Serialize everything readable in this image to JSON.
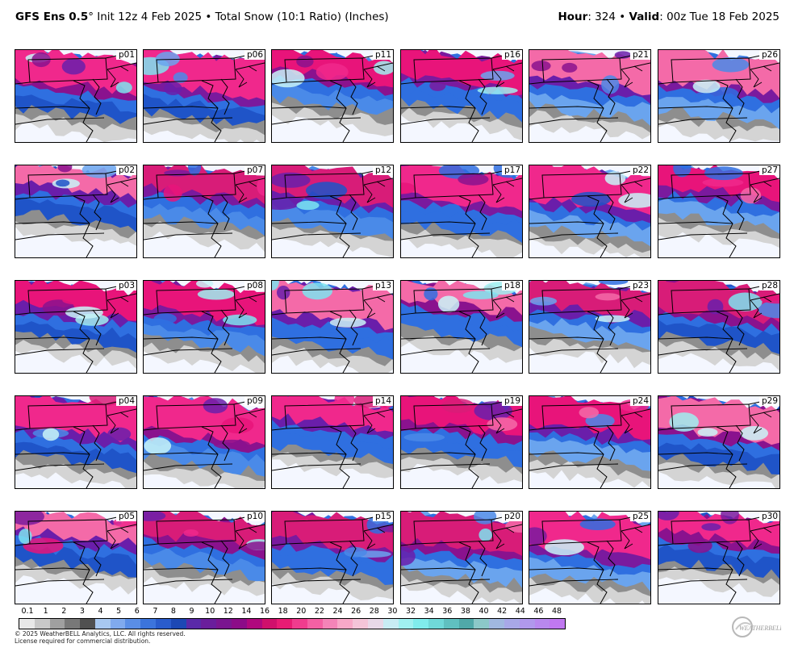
{
  "header": {
    "model": "GFS Ens 0.5",
    "degree": "°",
    "init": " Init 12z 4 Feb 2025",
    "bullet1": " • ",
    "product": "Total Snow (10:1 Ratio) (Inches)",
    "hour_label": "Hour",
    "hour_value": ": 324",
    "bullet2": " • ",
    "valid_label": "Valid",
    "valid_value": ": 00z Tue 18 Feb 2025"
  },
  "members": [
    [
      "p01",
      "p06",
      "p11",
      "p16",
      "p21",
      "p26"
    ],
    [
      "p02",
      "p07",
      "p12",
      "p17",
      "p22",
      "p27"
    ],
    [
      "p03",
      "p08",
      "p13",
      "p18",
      "p23",
      "p28"
    ],
    [
      "p04",
      "p09",
      "p14",
      "p19",
      "p24",
      "p29"
    ],
    [
      "p05",
      "p10",
      "p15",
      "p20",
      "p25",
      "p30"
    ]
  ],
  "colorbar": {
    "tick_labels": [
      "0.1",
      "1",
      "2",
      "3",
      "4",
      "5",
      "6",
      "7",
      "8",
      "9",
      "10",
      "12",
      "14",
      "16",
      "18",
      "20",
      "22",
      "24",
      "26",
      "28",
      "30",
      "32",
      "34",
      "36",
      "38",
      "40",
      "42",
      "44",
      "46",
      "48"
    ],
    "colors": [
      "#e8e8e8",
      "#c8c8c8",
      "#a0a0a0",
      "#787878",
      "#505050",
      "#a8c8f0",
      "#80aaee",
      "#5a8ee6",
      "#3c74dc",
      "#2a5ccc",
      "#1c48b4",
      "#5a2aa8",
      "#6a1e9c",
      "#7a1690",
      "#8c0c88",
      "#b0087e",
      "#d0106c",
      "#e81c74",
      "#f03c8e",
      "#f460a4",
      "#f484b8",
      "#f8a8c8",
      "#f4c4d8",
      "#e8d8e8",
      "#c8ecf4",
      "#a0f0f0",
      "#80ecec",
      "#70d8d8",
      "#60c0c0",
      "#50a8a8",
      "#8cc8c8",
      "#a0b8e0",
      "#a8a8e8",
      "#b098ec",
      "#b888ee",
      "#c078f0"
    ]
  },
  "copyright": {
    "line1": "© 2025 WeatherBELL Analytics, LLC. All rights reserved.",
    "line2": "License required for commercial distribution."
  },
  "logo": {
    "text": "WeatherBELL"
  }
}
